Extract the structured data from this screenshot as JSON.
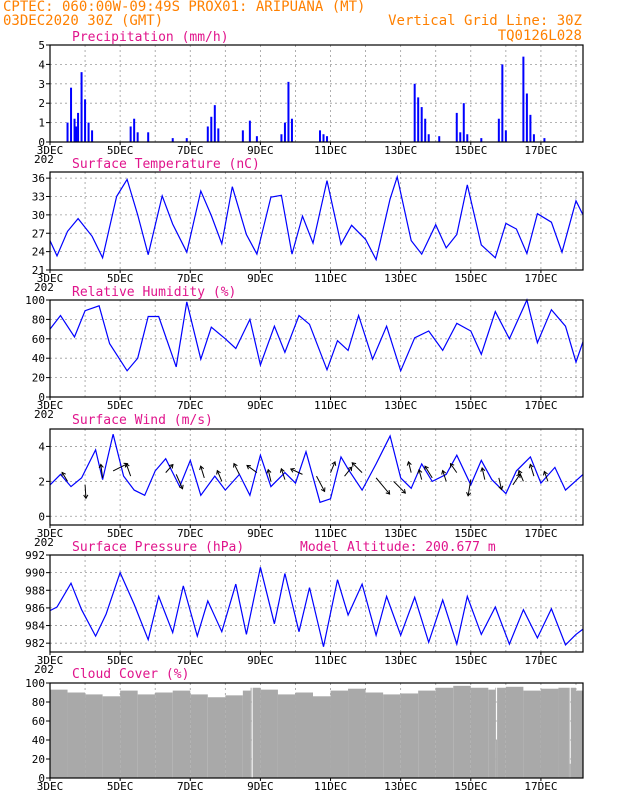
{
  "header": {
    "line1": "CPTEC:   060:00W-09:49S   PROX01: ARIPUANA (MT)",
    "line2_left": "03DEC2020 30Z (GMT)",
    "line2_right": "Vertical Grid Line: 30Z",
    "line3_right": "TQ0126L028"
  },
  "colors": {
    "header": "#ff8000",
    "title": "#e0148c",
    "series": "#0000ff",
    "cloud": "#a9a9a9"
  },
  "x_axis": {
    "ticks": [
      "3DEC",
      "5DEC",
      "7DEC",
      "9DEC",
      "11DEC",
      "13DEC",
      "15DEC",
      "17DEC"
    ],
    "overflow_label": "202",
    "start_day": 3,
    "end_day": 18.2
  },
  "chart_data": [
    {
      "type": "bar",
      "title": "Precipitation (mm/h)",
      "ylim": [
        0,
        5
      ],
      "yticks": [
        "0",
        "1",
        "2",
        "3",
        "4",
        "5"
      ],
      "x": [
        3.5,
        3.6,
        3.7,
        3.75,
        3.8,
        3.9,
        4.0,
        4.1,
        4.2,
        5.3,
        5.4,
        5.5,
        5.8,
        6.5,
        6.9,
        7.5,
        7.6,
        7.7,
        7.8,
        8.5,
        8.7,
        8.9,
        9.6,
        9.7,
        9.8,
        9.9,
        10.7,
        10.8,
        10.9,
        13.4,
        13.5,
        13.6,
        13.7,
        13.8,
        14.1,
        14.6,
        14.7,
        14.8,
        14.9,
        15.3,
        15.8,
        15.9,
        16.0,
        16.5,
        16.6,
        16.7,
        16.8,
        17.1
      ],
      "values": [
        1.0,
        2.8,
        1.2,
        0.8,
        1.5,
        3.6,
        2.2,
        1.0,
        0.6,
        0.8,
        1.2,
        0.5,
        0.5,
        0.2,
        0.2,
        0.8,
        1.3,
        1.9,
        0.7,
        0.6,
        1.1,
        0.3,
        0.4,
        1.0,
        3.1,
        1.2,
        0.6,
        0.4,
        0.3,
        3.0,
        2.3,
        1.8,
        1.2,
        0.4,
        0.3,
        1.5,
        0.5,
        2.0,
        0.4,
        0.2,
        1.2,
        4.0,
        0.6,
        4.4,
        2.5,
        1.4,
        0.4,
        0.2
      ]
    },
    {
      "type": "line",
      "title": "Surface Temperature (nC)",
      "ylim": [
        21,
        37
      ],
      "yticks": [
        "21",
        "24",
        "27",
        "30",
        "33",
        "36"
      ],
      "x": [
        3.0,
        3.2,
        3.5,
        3.8,
        4.2,
        4.5,
        4.9,
        5.2,
        5.5,
        5.8,
        6.2,
        6.5,
        6.9,
        7.3,
        7.6,
        7.9,
        8.2,
        8.6,
        8.9,
        9.3,
        9.6,
        9.9,
        10.2,
        10.5,
        10.9,
        11.3,
        11.6,
        12.0,
        12.3,
        12.7,
        12.9,
        13.3,
        13.6,
        14.0,
        14.3,
        14.6,
        14.9,
        15.3,
        15.7,
        16.0,
        16.3,
        16.6,
        16.9,
        17.3,
        17.6,
        18.0,
        18.2
      ],
      "values": [
        25.8,
        23.3,
        27.3,
        29.4,
        26.5,
        23.0,
        33.0,
        35.8,
        30.0,
        23.5,
        33.1,
        28.5,
        23.9,
        33.9,
        29.9,
        25.3,
        34.6,
        26.8,
        23.6,
        32.9,
        33.2,
        23.6,
        29.8,
        25.4,
        35.6,
        25.2,
        28.3,
        26.0,
        22.7,
        32.6,
        36.2,
        25.8,
        23.6,
        28.4,
        24.6,
        26.8,
        34.9,
        25.1,
        23.0,
        28.6,
        27.7,
        23.7,
        30.2,
        28.8,
        23.9,
        32.3,
        30.0
      ]
    },
    {
      "type": "line",
      "title": "Relative Humidity (%)",
      "ylim": [
        0,
        100
      ],
      "yticks": [
        "0",
        "20",
        "40",
        "60",
        "80",
        "100"
      ],
      "x": [
        3.0,
        3.3,
        3.7,
        4.0,
        4.4,
        4.7,
        5.2,
        5.5,
        5.8,
        6.1,
        6.6,
        6.9,
        7.3,
        7.6,
        8.0,
        8.3,
        8.7,
        9.0,
        9.4,
        9.7,
        10.1,
        10.4,
        10.9,
        11.2,
        11.5,
        11.8,
        12.2,
        12.6,
        13.0,
        13.4,
        13.8,
        14.2,
        14.6,
        15.0,
        15.3,
        15.7,
        16.1,
        16.6,
        16.9,
        17.3,
        17.7,
        18.0,
        18.2
      ],
      "values": [
        70,
        84,
        62,
        89,
        94,
        55,
        27,
        40,
        83,
        83,
        31,
        98,
        39,
        72,
        60,
        50,
        80,
        33,
        73,
        46,
        84,
        75,
        28,
        58,
        48,
        84,
        39,
        73,
        27,
        61,
        68,
        48,
        76,
        68,
        44,
        88,
        60,
        100,
        56,
        90,
        73,
        36,
        57
      ]
    },
    {
      "type": "line",
      "title": "Surface Wind (m/s)",
      "ylim": [
        -0.5,
        5
      ],
      "yticks": [
        "0",
        "2",
        "4"
      ],
      "x": [
        3.0,
        3.3,
        3.6,
        3.9,
        4.3,
        4.5,
        4.8,
        5.1,
        5.4,
        5.7,
        6.0,
        6.3,
        6.7,
        7.0,
        7.3,
        7.7,
        8.0,
        8.4,
        8.7,
        9.0,
        9.3,
        9.7,
        10.0,
        10.3,
        10.7,
        11.0,
        11.3,
        11.5,
        11.9,
        12.3,
        12.7,
        13.0,
        13.3,
        13.6,
        13.9,
        14.3,
        14.6,
        15.0,
        15.3,
        15.6,
        16.0,
        16.3,
        16.7,
        17.0,
        17.4,
        17.7,
        18.2
      ],
      "values": [
        1.8,
        2.4,
        1.7,
        2.2,
        3.8,
        2.1,
        4.7,
        2.3,
        1.5,
        1.2,
        2.6,
        3.3,
        1.7,
        3.2,
        1.2,
        2.3,
        1.5,
        2.4,
        1.2,
        3.5,
        1.7,
        2.5,
        1.9,
        3.7,
        0.8,
        1.0,
        3.4,
        2.7,
        1.5,
        3.0,
        4.6,
        2.2,
        1.6,
        3.0,
        2.0,
        2.4,
        3.5,
        1.8,
        3.2,
        2.1,
        1.3,
        2.6,
        3.4,
        1.9,
        2.8,
        1.5,
        2.4
      ],
      "vectors": [
        {
          "x": 3.5,
          "y": 2.0,
          "u": -0.6,
          "v": 1.0
        },
        {
          "x": 4.0,
          "y": 1.8,
          "u": 0.1,
          "v": -1.5
        },
        {
          "x": 4.5,
          "y": 2.2,
          "u": -0.2,
          "v": 1.5
        },
        {
          "x": 4.8,
          "y": 2.6,
          "u": 1.6,
          "v": 0.8
        },
        {
          "x": 5.3,
          "y": 2.3,
          "u": -0.5,
          "v": 1.4
        },
        {
          "x": 6.3,
          "y": 2.5,
          "u": 0.8,
          "v": 0.9
        },
        {
          "x": 6.6,
          "y": 2.4,
          "u": 0.7,
          "v": -1.6
        },
        {
          "x": 7.4,
          "y": 2.2,
          "u": -0.4,
          "v": 1.3
        },
        {
          "x": 7.9,
          "y": 2.0,
          "u": -0.5,
          "v": 1.2
        },
        {
          "x": 8.4,
          "y": 2.4,
          "u": -0.6,
          "v": 1.2
        },
        {
          "x": 8.9,
          "y": 2.5,
          "u": -1.1,
          "v": 0.8
        },
        {
          "x": 9.3,
          "y": 2.0,
          "u": -0.3,
          "v": 1.3
        },
        {
          "x": 9.7,
          "y": 2.1,
          "u": -0.4,
          "v": 1.2
        },
        {
          "x": 10.2,
          "y": 2.4,
          "u": -1.3,
          "v": 0.6
        },
        {
          "x": 10.6,
          "y": 2.3,
          "u": 0.9,
          "v": -1.7
        },
        {
          "x": 11.0,
          "y": 2.5,
          "u": 0.5,
          "v": 1.2
        },
        {
          "x": 11.4,
          "y": 2.3,
          "u": 0.8,
          "v": 1.0
        },
        {
          "x": 11.9,
          "y": 2.5,
          "u": -1.1,
          "v": 1.1
        },
        {
          "x": 12.3,
          "y": 2.2,
          "u": 1.5,
          "v": -1.8
        },
        {
          "x": 12.8,
          "y": 2.0,
          "u": 1.3,
          "v": -1.3
        },
        {
          "x": 13.3,
          "y": 2.5,
          "u": -0.3,
          "v": 1.2
        },
        {
          "x": 13.6,
          "y": 2.1,
          "u": -0.3,
          "v": 1.1
        },
        {
          "x": 13.9,
          "y": 2.2,
          "u": -0.8,
          "v": 1.3
        },
        {
          "x": 14.3,
          "y": 2.0,
          "u": -0.4,
          "v": 1.2
        },
        {
          "x": 14.6,
          "y": 2.5,
          "u": -0.7,
          "v": 1.0
        },
        {
          "x": 15.0,
          "y": 2.1,
          "u": -0.3,
          "v": -1.8
        },
        {
          "x": 15.4,
          "y": 2.1,
          "u": -0.3,
          "v": 1.3
        },
        {
          "x": 15.8,
          "y": 2.2,
          "u": 0.3,
          "v": -1.3
        },
        {
          "x": 16.2,
          "y": 1.8,
          "u": 0.8,
          "v": 1.2
        },
        {
          "x": 16.5,
          "y": 2.0,
          "u": -0.5,
          "v": 1.2
        },
        {
          "x": 16.8,
          "y": 2.3,
          "u": -0.4,
          "v": 1.3
        },
        {
          "x": 17.2,
          "y": 2.0,
          "u": -0.4,
          "v": 1.1
        }
      ]
    },
    {
      "type": "line",
      "title": "Surface Pressure (hPa)",
      "subtitle": "Model Altitude: 200.677 m",
      "ylim": [
        981,
        992
      ],
      "yticks": [
        "982",
        "984",
        "986",
        "988",
        "990",
        "992"
      ],
      "x": [
        3.0,
        3.2,
        3.6,
        3.9,
        4.3,
        4.6,
        5.0,
        5.4,
        5.8,
        6.1,
        6.5,
        6.8,
        7.2,
        7.5,
        7.9,
        8.3,
        8.6,
        9.0,
        9.4,
        9.7,
        10.1,
        10.4,
        10.8,
        11.2,
        11.5,
        11.9,
        12.3,
        12.6,
        13.0,
        13.4,
        13.8,
        14.2,
        14.6,
        14.9,
        15.3,
        15.7,
        16.1,
        16.5,
        16.9,
        17.3,
        17.7,
        18.0,
        18.2
      ],
      "values": [
        985.7,
        986.1,
        988.8,
        985.8,
        982.8,
        985.3,
        990.0,
        986.4,
        982.4,
        987.3,
        983.2,
        988.5,
        982.8,
        986.8,
        983.3,
        988.7,
        983.0,
        990.6,
        984.2,
        989.9,
        983.3,
        988.3,
        981.6,
        989.2,
        985.2,
        988.7,
        982.9,
        987.3,
        982.9,
        987.2,
        982.1,
        986.9,
        981.9,
        987.3,
        983.0,
        986.1,
        981.9,
        985.8,
        982.6,
        985.9,
        981.8,
        983.0,
        983.6
      ]
    },
    {
      "type": "area",
      "title": "Cloud Cover (%)",
      "ylim": [
        0,
        100
      ],
      "yticks": [
        "0",
        "20",
        "40",
        "60",
        "80",
        "100"
      ],
      "x": [
        3.0,
        3.5,
        4.0,
        4.5,
        5.0,
        5.5,
        6.0,
        6.5,
        7.0,
        7.5,
        8.0,
        8.5,
        8.72,
        8.75,
        8.78,
        9.0,
        9.5,
        10.0,
        10.5,
        11.0,
        11.5,
        12.0,
        12.5,
        13.0,
        13.5,
        14.0,
        14.5,
        15.0,
        15.5,
        15.7,
        15.72,
        15.75,
        16.0,
        16.5,
        17.0,
        17.5,
        17.8,
        17.82,
        17.85,
        18.0,
        18.2
      ],
      "values": [
        93,
        90,
        88,
        86,
        92,
        88,
        90,
        92,
        88,
        85,
        87,
        92,
        95,
        0,
        95,
        93,
        88,
        90,
        86,
        92,
        94,
        90,
        88,
        89,
        92,
        95,
        97,
        95,
        93,
        95,
        40,
        95,
        96,
        92,
        94,
        95,
        95,
        15,
        95,
        92,
        94
      ]
    }
  ]
}
